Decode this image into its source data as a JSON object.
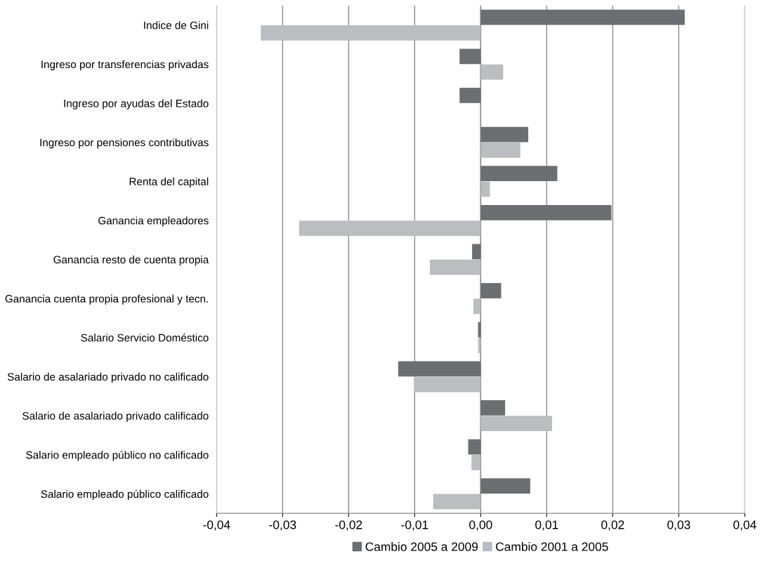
{
  "chart_data": {
    "type": "bar",
    "orientation": "horizontal",
    "categories": [
      "Indice de Gini",
      "Ingreso por transferencias privadas",
      "Ingreso por ayudas del Estado",
      "Ingreso por pensiones contributivas",
      "Renta del capital",
      "Ganancia empleadores",
      "Ganancia resto de cuenta propia",
      "Ganancia cuenta propia profesional y tecn.",
      "Salario Servicio Doméstico",
      "Salario de asalariado privado no calificado",
      "Salario de asalariado privado calificado",
      "Salario empleado público no calificado",
      "Salario empleado público calificado"
    ],
    "series": [
      {
        "name": "Cambio 2005 a 2009",
        "color": "#6d6e71",
        "values": [
          0.0309,
          -0.0032,
          -0.0032,
          0.0072,
          0.0116,
          0.0198,
          -0.0013,
          0.0031,
          -0.0004,
          -0.0125,
          0.0037,
          -0.0019,
          0.0075
        ]
      },
      {
        "name": "Cambio 2001 a 2005",
        "color": "#bcbdc0",
        "values": [
          -0.0333,
          0.0034,
          0.0,
          0.006,
          0.0014,
          -0.0275,
          -0.0077,
          -0.0011,
          -0.0004,
          -0.0101,
          0.0108,
          -0.0014,
          -0.0072
        ]
      }
    ],
    "xlim": [
      -0.04,
      0.04
    ],
    "xticks": [
      {
        "value": -0.04,
        "label": "-0,04"
      },
      {
        "value": -0.03,
        "label": "-0,03"
      },
      {
        "value": -0.02,
        "label": "-0,02"
      },
      {
        "value": -0.01,
        "label": "-0,01"
      },
      {
        "value": 0,
        "label": "0,00"
      },
      {
        "value": 0.01,
        "label": "0,01"
      },
      {
        "value": 0.02,
        "label": "0,02"
      },
      {
        "value": 0.03,
        "label": "0,03"
      },
      {
        "value": 0.04,
        "label": "0,04"
      }
    ],
    "grid": "x",
    "legend": "bottom"
  }
}
